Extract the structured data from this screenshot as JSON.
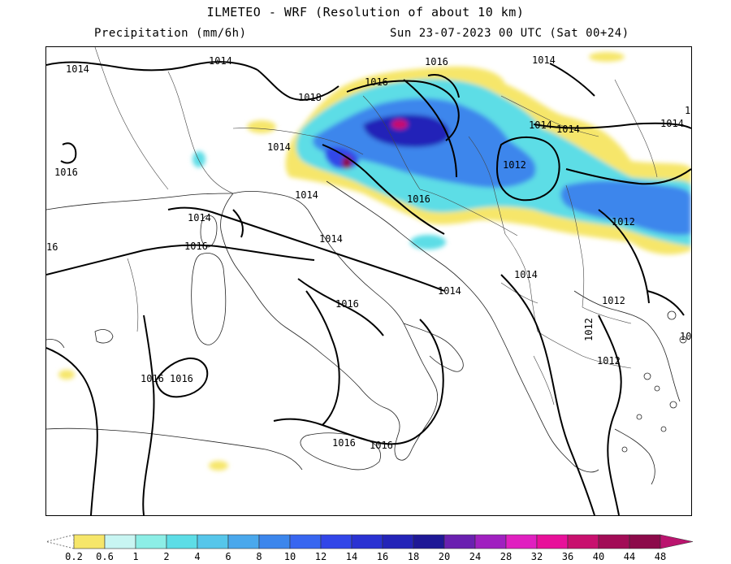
{
  "header": {
    "title": "ILMETEO - WRF (Resolution of about 10 km)",
    "field": "Precipitation (mm/6h)",
    "valid_time": "Sun 23-07-2023 00 UTC (Sat 00+24)"
  },
  "isobar_labels": [
    {
      "text": "1014"
    },
    {
      "text": "1014"
    },
    {
      "text": "1016"
    },
    {
      "text": "1016"
    },
    {
      "text": "1014"
    },
    {
      "text": "1018"
    },
    {
      "text": "1016"
    },
    {
      "text": "1014"
    },
    {
      "text": "1014"
    },
    {
      "text": "1014"
    },
    {
      "text": "1014"
    },
    {
      "text": "1012"
    },
    {
      "text": "1016"
    },
    {
      "text": "1014"
    },
    {
      "text": "1014"
    },
    {
      "text": "1016"
    },
    {
      "text": "1012"
    },
    {
      "text": "1014"
    },
    {
      "text": "1014"
    },
    {
      "text": "1016"
    },
    {
      "text": "1012"
    },
    {
      "text": "1012"
    },
    {
      "text": "1012"
    },
    {
      "text": "1016"
    },
    {
      "text": "1016"
    },
    {
      "text": "1016"
    },
    {
      "text": "1016"
    },
    {
      "text": "1016"
    },
    {
      "text": "1014"
    },
    {
      "text": "10"
    },
    {
      "text": "16"
    },
    {
      "text": "1"
    },
    {
      "text": "1012"
    }
  ],
  "legend": {
    "colors": [
      "#f6e66a",
      "#c8f5f2",
      "#8ceee6",
      "#5ddde6",
      "#56c6ea",
      "#4aa8ec",
      "#3c86ec",
      "#3866f0",
      "#3246e8",
      "#2a32d2",
      "#2424b8",
      "#1e1896",
      "#6a20b0",
      "#a020c0",
      "#e020c0",
      "#e8109a",
      "#c8106e",
      "#a20c56",
      "#8c0a4a",
      "#760838",
      "#5e062a",
      "#ba146e"
    ],
    "labels": [
      "0.2",
      "0.6",
      "1",
      "2",
      "4",
      "6",
      "8",
      "10",
      "12",
      "14",
      "16",
      "18",
      "20",
      "24",
      "28",
      "32",
      "36",
      "40",
      "44",
      "48"
    ]
  }
}
